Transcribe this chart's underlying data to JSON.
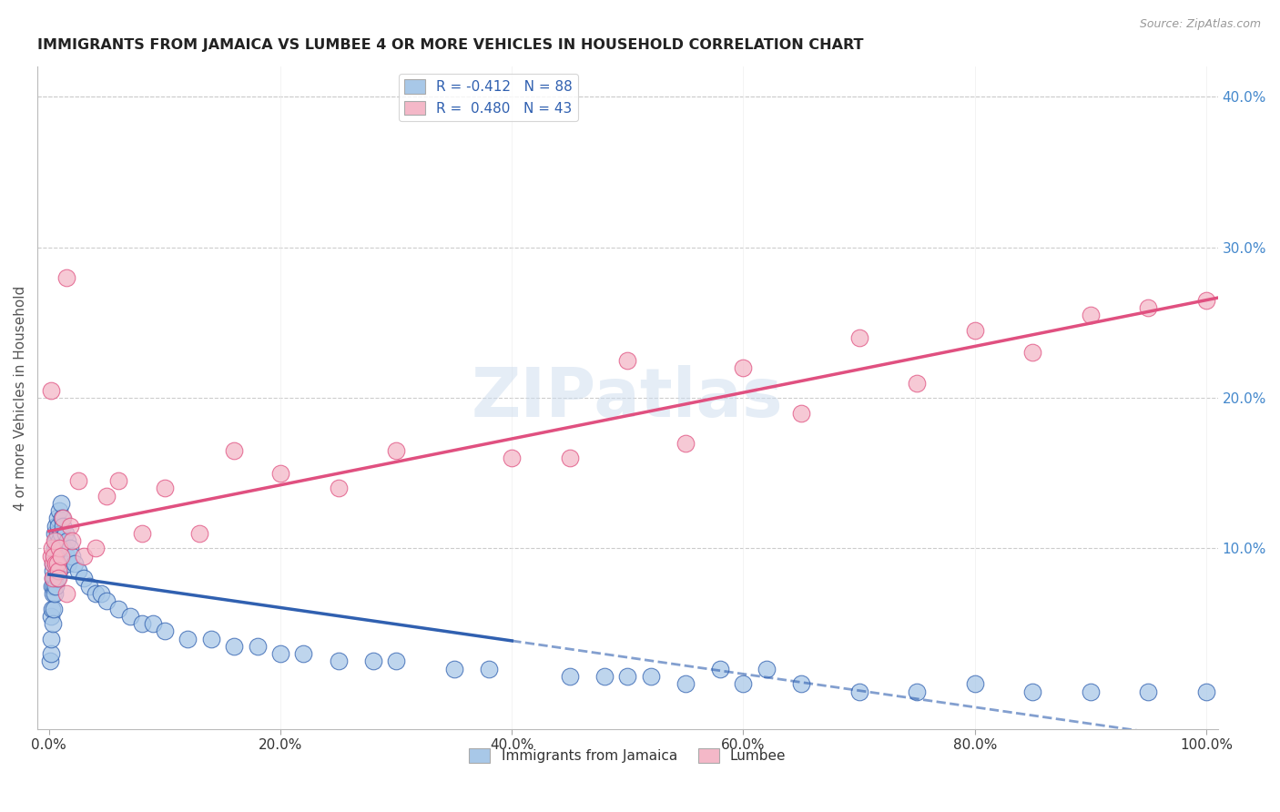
{
  "title": "IMMIGRANTS FROM JAMAICA VS LUMBEE 4 OR MORE VEHICLES IN HOUSEHOLD CORRELATION CHART",
  "source": "Source: ZipAtlas.com",
  "ylabel": "4 or more Vehicles in Household",
  "watermark": "ZIPatlas",
  "legend_r1": "R = -0.412   N = 88",
  "legend_r2": "R =  0.480   N = 43",
  "series1_color": "#a8c8e8",
  "series2_color": "#f4b8c8",
  "trendline1_color": "#3060b0",
  "trendline2_color": "#e05080",
  "grid_color": "#cccccc",
  "background_color": "#ffffff",
  "title_color": "#222222",
  "axis_label_color": "#555555",
  "right_tick_color": "#4488cc",
  "xmin": -1.0,
  "xmax": 101.0,
  "ymin": -2.0,
  "ymax": 42.0,
  "jamaica_x": [
    0.1,
    0.15,
    0.2,
    0.2,
    0.25,
    0.25,
    0.3,
    0.3,
    0.3,
    0.35,
    0.35,
    0.4,
    0.4,
    0.4,
    0.45,
    0.45,
    0.5,
    0.5,
    0.5,
    0.55,
    0.55,
    0.6,
    0.6,
    0.65,
    0.65,
    0.7,
    0.7,
    0.75,
    0.75,
    0.8,
    0.8,
    0.85,
    0.85,
    0.9,
    0.9,
    1.0,
    1.0,
    1.0,
    1.1,
    1.1,
    1.2,
    1.2,
    1.3,
    1.4,
    1.5,
    1.6,
    1.7,
    1.8,
    2.0,
    2.2,
    2.5,
    3.0,
    3.5,
    4.0,
    4.5,
    5.0,
    6.0,
    7.0,
    8.0,
    9.0,
    10.0,
    12.0,
    14.0,
    16.0,
    18.0,
    20.0,
    22.0,
    25.0,
    28.0,
    30.0,
    35.0,
    38.0,
    45.0,
    50.0,
    55.0,
    60.0,
    65.0,
    70.0,
    75.0,
    80.0,
    85.0,
    90.0,
    95.0,
    100.0,
    48.0,
    52.0,
    58.0,
    62.0
  ],
  "jamaica_y": [
    2.5,
    3.0,
    4.0,
    5.5,
    6.0,
    7.5,
    7.0,
    8.0,
    9.0,
    5.0,
    8.5,
    6.0,
    7.5,
    9.5,
    7.0,
    10.0,
    8.0,
    9.5,
    11.0,
    7.5,
    10.5,
    9.0,
    11.5,
    8.5,
    10.0,
    9.0,
    11.0,
    8.0,
    12.0,
    9.5,
    11.5,
    8.5,
    10.5,
    9.5,
    12.5,
    9.0,
    11.0,
    13.0,
    10.0,
    12.0,
    9.5,
    11.5,
    10.0,
    11.0,
    9.5,
    10.5,
    9.0,
    10.0,
    9.5,
    9.0,
    8.5,
    8.0,
    7.5,
    7.0,
    7.0,
    6.5,
    6.0,
    5.5,
    5.0,
    5.0,
    4.5,
    4.0,
    4.0,
    3.5,
    3.5,
    3.0,
    3.0,
    2.5,
    2.5,
    2.5,
    2.0,
    2.0,
    1.5,
    1.5,
    1.0,
    1.0,
    1.0,
    0.5,
    0.5,
    1.0,
    0.5,
    0.5,
    0.5,
    0.5,
    1.5,
    1.5,
    2.0,
    2.0
  ],
  "lumbee_x": [
    0.15,
    0.2,
    0.25,
    0.3,
    0.35,
    0.4,
    0.5,
    0.6,
    0.7,
    0.8,
    0.9,
    1.0,
    1.2,
    1.5,
    1.8,
    2.0,
    2.5,
    3.0,
    4.0,
    5.0,
    6.0,
    8.0,
    10.0,
    13.0,
    16.0,
    20.0,
    25.0,
    30.0,
    40.0,
    50.0,
    60.0,
    70.0,
    80.0,
    90.0,
    95.0,
    100.0,
    45.0,
    55.0,
    65.0,
    75.0,
    85.0,
    0.8,
    1.5
  ],
  "lumbee_y": [
    9.5,
    20.5,
    10.0,
    9.0,
    8.0,
    9.5,
    10.5,
    9.0,
    9.0,
    8.5,
    10.0,
    9.5,
    12.0,
    28.0,
    11.5,
    10.5,
    14.5,
    9.5,
    10.0,
    13.5,
    14.5,
    11.0,
    14.0,
    11.0,
    16.5,
    15.0,
    14.0,
    16.5,
    16.0,
    22.5,
    22.0,
    24.0,
    24.5,
    25.5,
    26.0,
    26.5,
    16.0,
    17.0,
    19.0,
    21.0,
    23.0,
    8.0,
    7.0
  ]
}
